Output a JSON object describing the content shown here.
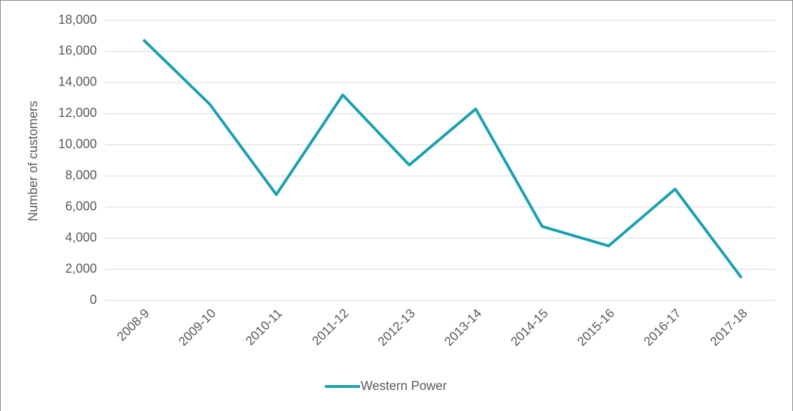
{
  "chart_data": {
    "type": "line",
    "y_axis_label": "Number of customers",
    "categories": [
      "2008-9",
      "2009-10",
      "2010-11",
      "2011-12",
      "2012-13",
      "2013-14",
      "2014-15",
      "2015-16",
      "2016-17",
      "2017-18"
    ],
    "series": [
      {
        "name": "Western Power",
        "color": "#1aa0b2",
        "values": [
          16750,
          12600,
          6800,
          13200,
          8700,
          12300,
          4750,
          3500,
          7150,
          1450
        ]
      }
    ],
    "ylim": [
      0,
      18000
    ],
    "yticks": [
      0,
      {
        "value": 2000,
        "label": "2,000"
      },
      {
        "value": 4000,
        "label": "4,000"
      },
      {
        "value": 6000,
        "label": "6,000"
      },
      {
        "value": 8000,
        "label": "8,000"
      },
      {
        "value": 10000,
        "label": "10,000"
      },
      {
        "value": 12000,
        "label": "12,000"
      },
      {
        "value": 14000,
        "label": "14,000"
      },
      {
        "value": 16000,
        "label": "16,000"
      },
      {
        "value": 18000,
        "label": "18,000"
      }
    ],
    "grid": true,
    "legend": "bottom"
  }
}
